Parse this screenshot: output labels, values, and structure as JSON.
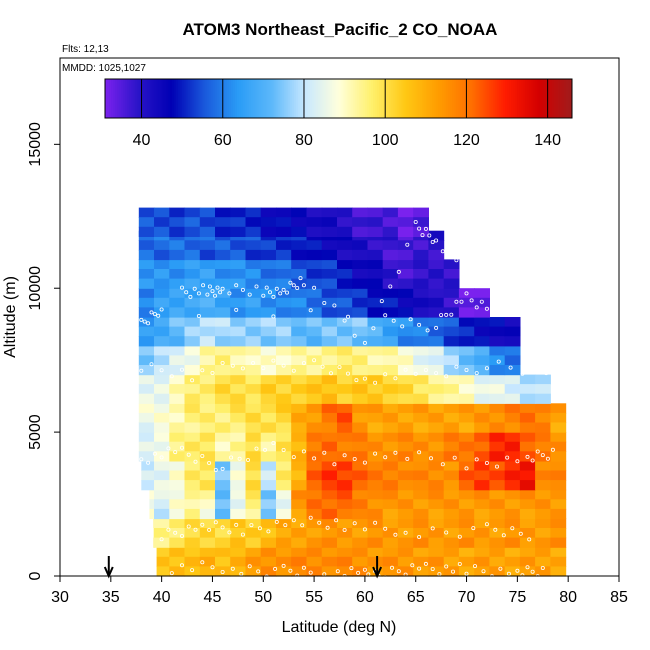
{
  "chart_data": {
    "type": "heatmap",
    "title": "ATOM3 Northeast_Pacific_2 CO_NOAA",
    "flights_label": "Flts: 12,13",
    "dates_label": "MMDD: 1025,1027",
    "xlabel": "Latitude (deg N)",
    "ylabel": "Altitude (m)",
    "xlim": [
      30,
      85
    ],
    "ylim": [
      0,
      18000
    ],
    "x_ticks": [
      30,
      35,
      40,
      45,
      50,
      55,
      60,
      65,
      70,
      75,
      80,
      85
    ],
    "y_ticks": [
      0,
      5000,
      10000,
      15000
    ],
    "colorbar": {
      "range": [
        31,
        146
      ],
      "ticks": [
        40,
        60,
        80,
        100,
        120,
        140
      ],
      "colors": [
        "#7b22ee",
        "#2a14c8",
        "#0000b4",
        "#1a5adc",
        "#2a9cf6",
        "#5cb8fa",
        "#c8e8ff",
        "#ffffdc",
        "#fff06c",
        "#ffc814",
        "#ff9c00",
        "#ff6e00",
        "#ff1c00",
        "#d40000",
        "#a01c1c"
      ]
    },
    "profile_markers_lat": [
      34.8,
      61.2
    ],
    "columns_lat": [
      38.5,
      40,
      41.5,
      43,
      44.5,
      46,
      47.5,
      49,
      50.5,
      52,
      53.5,
      55,
      56.5,
      58,
      59.5,
      61,
      62.5,
      64,
      65.5,
      67,
      68.5,
      70,
      71.5,
      73,
      74.5,
      76,
      77.5,
      79
    ],
    "rows_alt_m": [
      500,
      1500,
      2500,
      3500,
      4500,
      5500,
      6500,
      7500,
      8500,
      9500,
      10500,
      11500,
      12300
    ],
    "co_ppb": [
      [
        104,
        104,
        106,
        108,
        108,
        106,
        110,
        112,
        115,
        116,
        116,
        116,
        117,
        116,
        115,
        115,
        114,
        114,
        114,
        113,
        112,
        112,
        112,
        112,
        112,
        112,
        112,
        112
      ],
      [
        94,
        95,
        98,
        100,
        102,
        102,
        104,
        104,
        108,
        110,
        112,
        114,
        114,
        114,
        114,
        114,
        114,
        114,
        114,
        114,
        114,
        114,
        114,
        114,
        114,
        114,
        114,
        114
      ],
      [
        88,
        82,
        88,
        94,
        90,
        72,
        86,
        96,
        74,
        86,
        114,
        120,
        122,
        122,
        118,
        116,
        114,
        114,
        114,
        114,
        114,
        114,
        114,
        114,
        114,
        114,
        114,
        114
      ],
      [
        80,
        84,
        90,
        96,
        98,
        76,
        86,
        100,
        82,
        96,
        108,
        124,
        126,
        126,
        124,
        118,
        118,
        118,
        116,
        116,
        116,
        122,
        126,
        126,
        128,
        132,
        118,
        116
      ],
      [
        84,
        88,
        94,
        98,
        100,
        90,
        94,
        102,
        92,
        100,
        110,
        118,
        122,
        120,
        118,
        116,
        116,
        116,
        116,
        116,
        118,
        120,
        124,
        128,
        130,
        124,
        118,
        116
      ],
      [
        86,
        88,
        92,
        96,
        96,
        96,
        98,
        100,
        100,
        102,
        110,
        114,
        120,
        124,
        114,
        112,
        112,
        112,
        112,
        112,
        112,
        112,
        114,
        116,
        118,
        120,
        118,
        112
      ],
      [
        84,
        86,
        90,
        96,
        98,
        100,
        100,
        100,
        102,
        102,
        104,
        104,
        106,
        104,
        104,
        104,
        104,
        100,
        98,
        96,
        92,
        90,
        86,
        84,
        82,
        80,
        78,
        null
      ],
      [
        76,
        78,
        84,
        88,
        92,
        96,
        94,
        90,
        90,
        92,
        92,
        94,
        96,
        96,
        96,
        94,
        92,
        90,
        86,
        82,
        78,
        74,
        68,
        62,
        60,
        null,
        null,
        null
      ],
      [
        64,
        68,
        72,
        76,
        80,
        78,
        76,
        76,
        76,
        76,
        72,
        72,
        74,
        74,
        74,
        70,
        66,
        62,
        60,
        58,
        54,
        50,
        48,
        46,
        44,
        null,
        null,
        null
      ],
      [
        62,
        64,
        66,
        68,
        68,
        66,
        64,
        64,
        62,
        62,
        60,
        58,
        56,
        54,
        52,
        50,
        48,
        46,
        44,
        40,
        38,
        34,
        32,
        null,
        null,
        null,
        null,
        null
      ],
      [
        62,
        64,
        64,
        64,
        66,
        64,
        62,
        62,
        60,
        58,
        56,
        54,
        52,
        50,
        46,
        44,
        40,
        38,
        38,
        40,
        40,
        null,
        null,
        null,
        null,
        null,
        null,
        null
      ],
      [
        58,
        58,
        58,
        58,
        56,
        56,
        56,
        54,
        52,
        52,
        50,
        48,
        46,
        44,
        42,
        40,
        38,
        36,
        38,
        40,
        null,
        null,
        null,
        null,
        null,
        null,
        null,
        null
      ],
      [
        54,
        54,
        54,
        54,
        54,
        52,
        50,
        50,
        48,
        46,
        46,
        44,
        42,
        40,
        38,
        36,
        36,
        34,
        34,
        null,
        null,
        null,
        null,
        null,
        null,
        null,
        null,
        null
      ]
    ],
    "row_lat_start": [
      39.5,
      39.2,
      38.8,
      38.0,
      37.2,
      36.8,
      36.5,
      35.8,
      35.0,
      34.8,
      35.2,
      35.5,
      35.5
    ]
  }
}
